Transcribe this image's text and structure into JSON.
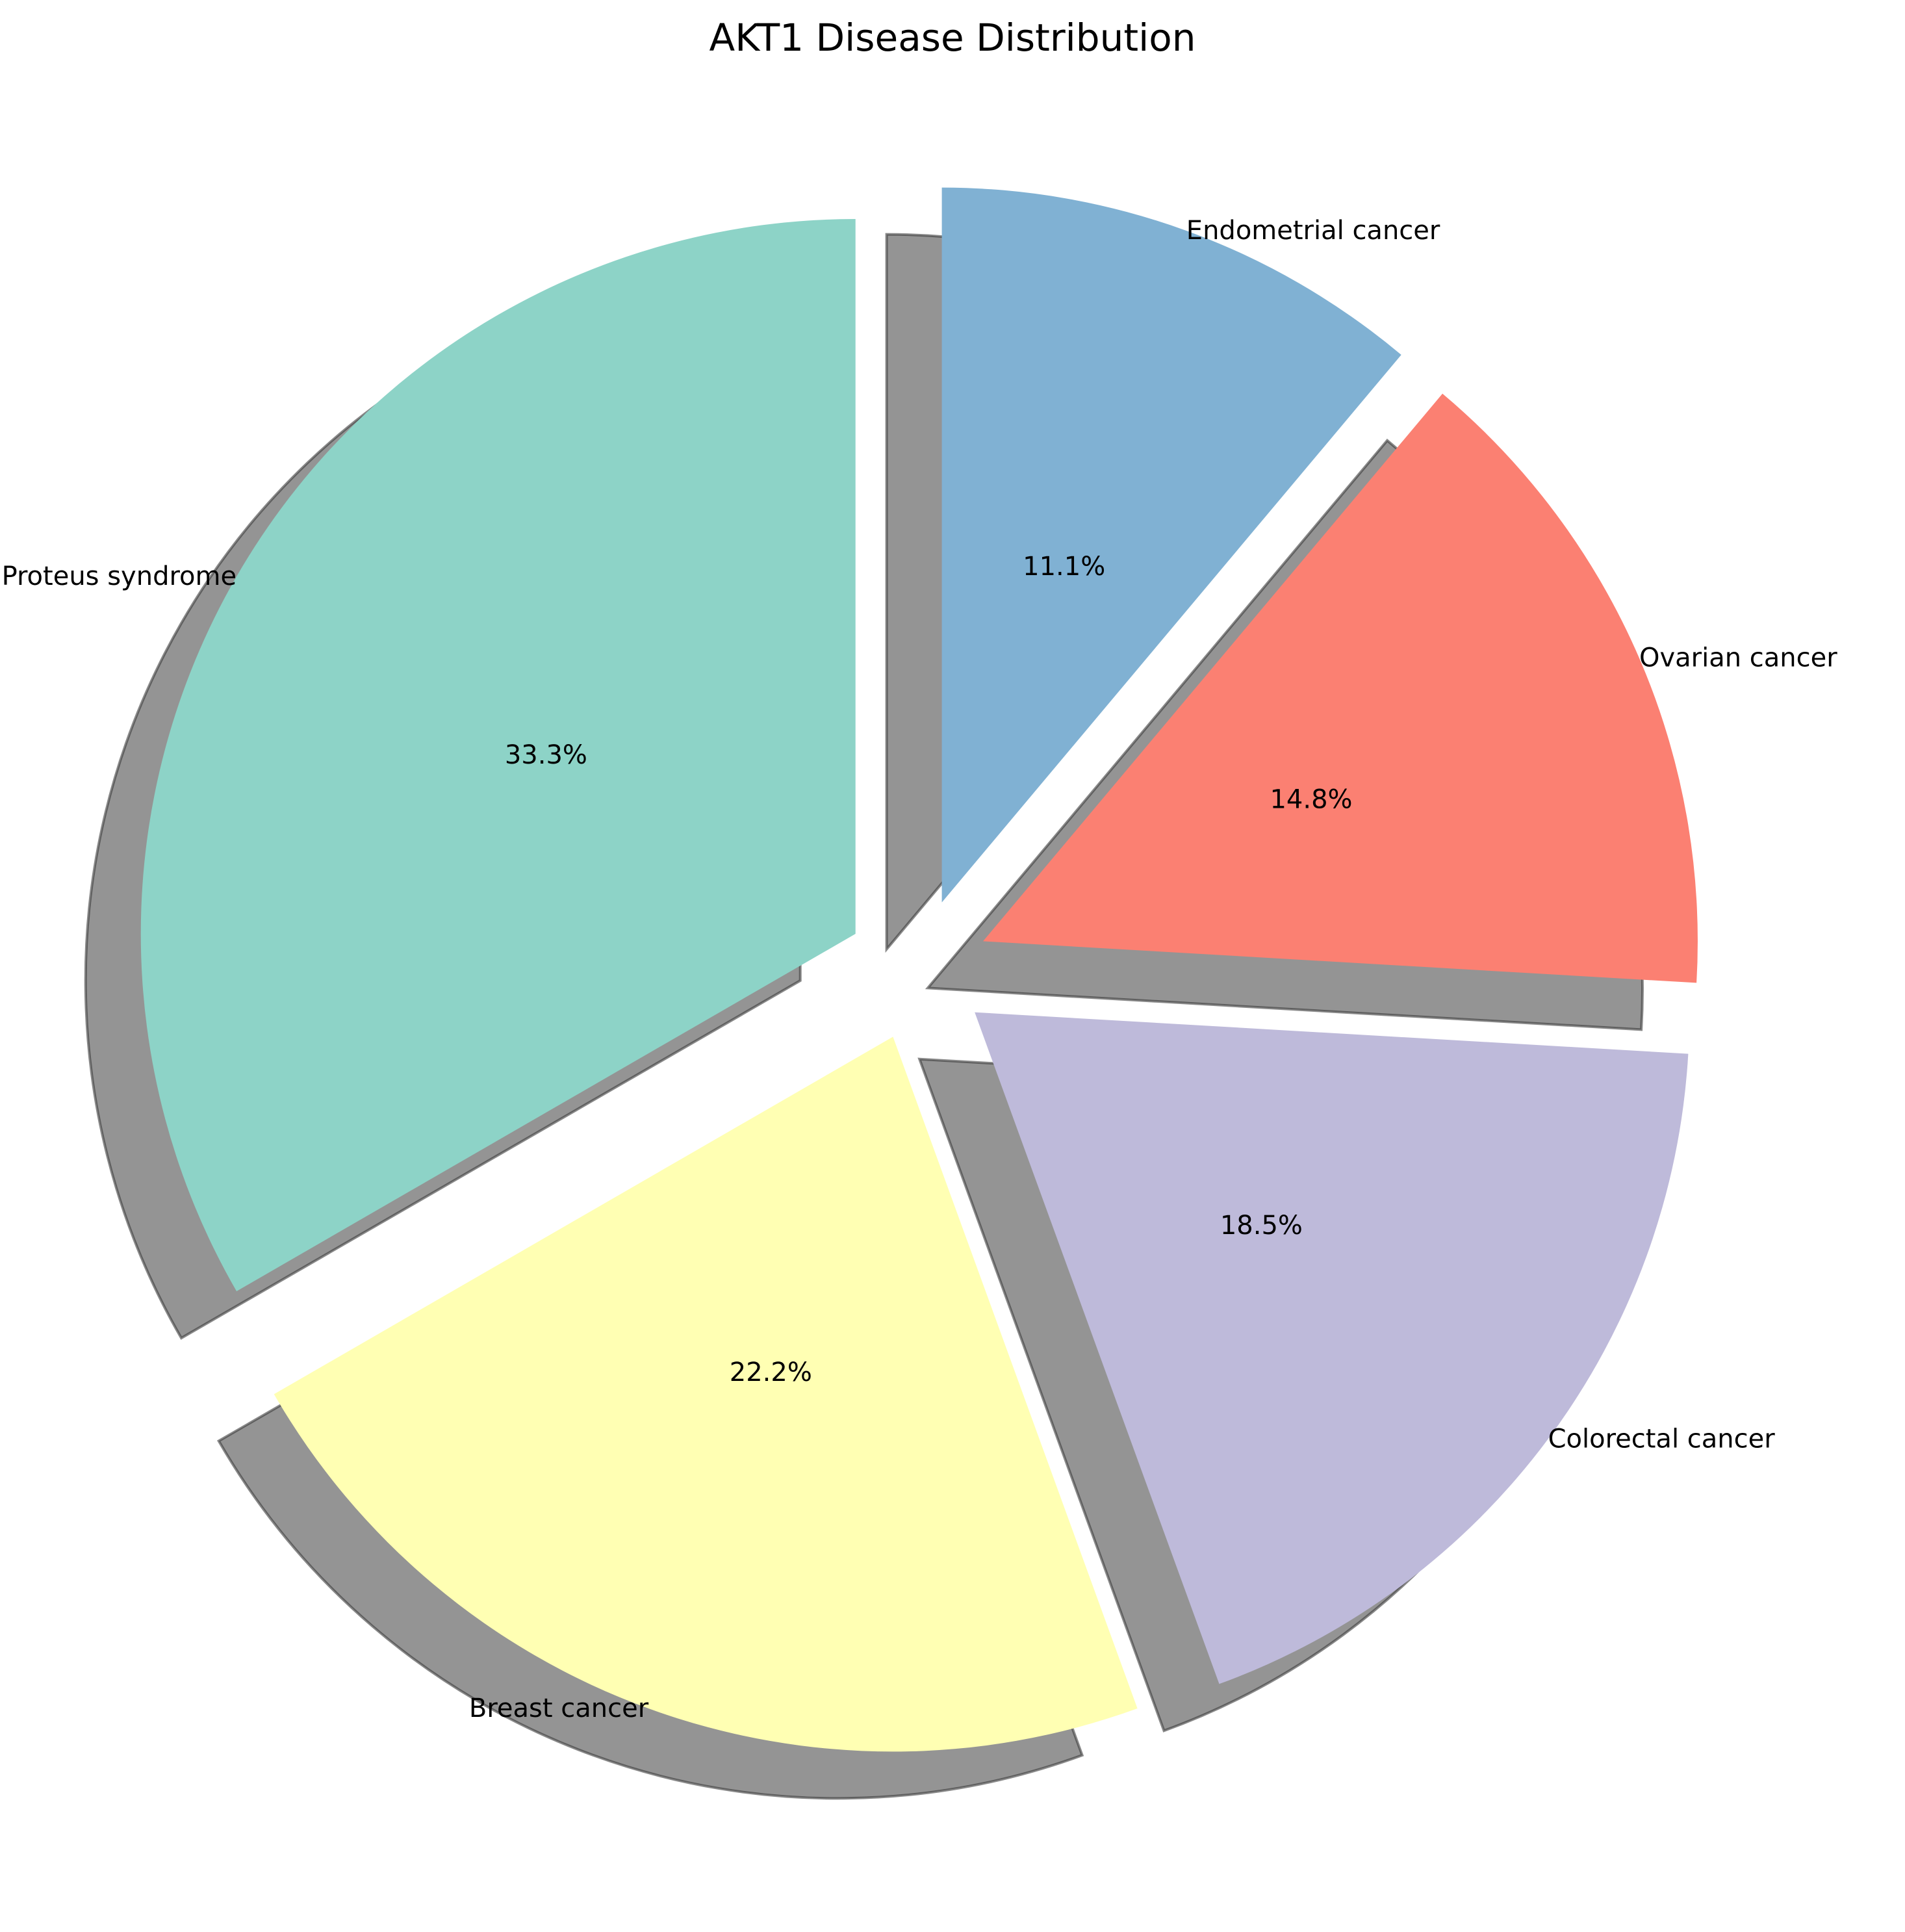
{
  "chart_data": {
    "type": "pie",
    "title": "AKT1 Disease Distribution",
    "start_angle_deg": 90,
    "direction": "clockwise",
    "shadow": true,
    "exploded": true,
    "slices": [
      {
        "label": "Endometrial cancer",
        "value": 11.1,
        "pct_label": "11.1%",
        "color": "#80b1d3"
      },
      {
        "label": "Ovarian cancer",
        "value": 14.8,
        "pct_label": "14.8%",
        "color": "#fb8072"
      },
      {
        "label": "Colorectal cancer",
        "value": 18.5,
        "pct_label": "18.5%",
        "color": "#bebada"
      },
      {
        "label": "Breast cancer",
        "value": 22.2,
        "pct_label": "22.2%",
        "color": "#ffffb3"
      },
      {
        "label": "Proteus syndrome",
        "value": 33.3,
        "pct_label": "33.3%",
        "color": "#8dd3c7"
      }
    ]
  }
}
